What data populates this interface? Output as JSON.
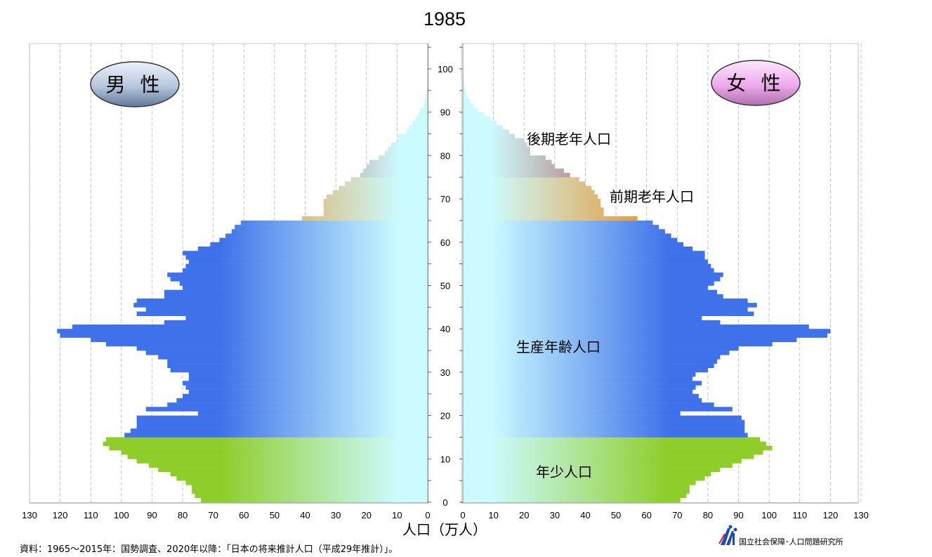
{
  "chart_data": {
    "type": "bar",
    "title": "1985",
    "xlabel": "人口（万人）",
    "x_ticks": [
      130,
      120,
      110,
      100,
      90,
      80,
      70,
      60,
      50,
      40,
      30,
      20,
      10,
      0
    ],
    "age_ticks": [
      0,
      10,
      20,
      30,
      40,
      50,
      60,
      70,
      80,
      90,
      100
    ],
    "xlim": [
      0,
      130
    ],
    "age_range": [
      0,
      105
    ],
    "legend_male": "男 性",
    "legend_female": "女 性",
    "group_labels": {
      "late_elderly": "後期老年人口",
      "early_elderly": "前期老年人口",
      "working_age": "生産年齢人口",
      "young": "年少人口"
    },
    "group_colors": {
      "young": "#8fcd2a",
      "working_age": "#3f72ea",
      "early_elderly": "#e88b1a",
      "late_elderly": "#a52a20",
      "light": "#ccfbff"
    },
    "ages": [
      0,
      1,
      2,
      3,
      4,
      5,
      6,
      7,
      8,
      9,
      10,
      11,
      12,
      13,
      14,
      15,
      16,
      17,
      18,
      19,
      20,
      21,
      22,
      23,
      24,
      25,
      26,
      27,
      28,
      29,
      30,
      31,
      32,
      33,
      34,
      35,
      36,
      37,
      38,
      39,
      40,
      41,
      42,
      43,
      44,
      45,
      46,
      47,
      48,
      49,
      50,
      51,
      52,
      53,
      54,
      55,
      56,
      57,
      58,
      59,
      60,
      61,
      62,
      63,
      64,
      65,
      66,
      67,
      68,
      69,
      70,
      71,
      72,
      73,
      74,
      75,
      76,
      77,
      78,
      79,
      80,
      81,
      82,
      83,
      84,
      85,
      86,
      87,
      88,
      89,
      90,
      91,
      92,
      93,
      94,
      95,
      96,
      97,
      98,
      99,
      100,
      101,
      102,
      103,
      104
    ],
    "series": [
      {
        "name": "男 性",
        "values": [
          74,
          76,
          77,
          77,
          79,
          82,
          84,
          88,
          91,
          95,
          98,
          100,
          104,
          106,
          105,
          99,
          97,
          95,
          95,
          95,
          75,
          92,
          85,
          82,
          80,
          78,
          79,
          80,
          78,
          78,
          84,
          85,
          85,
          88,
          92,
          95,
          105,
          110,
          120,
          121,
          116,
          86,
          79,
          95,
          92,
          96,
          95,
          86,
          86,
          80,
          81,
          84,
          85,
          80,
          79,
          78,
          79,
          80,
          75,
          71,
          68,
          66,
          64,
          63,
          61,
          41,
          34,
          34,
          34,
          34,
          33,
          31,
          29,
          27,
          25,
          22,
          21,
          20,
          19,
          16,
          14,
          13,
          12,
          10,
          10,
          7,
          6,
          5,
          4,
          3,
          2.5,
          1.5,
          1.1,
          0.6,
          0.4,
          0.2,
          0.1,
          0.05,
          0,
          0,
          0,
          0,
          0,
          0,
          0
        ]
      },
      {
        "name": "女 性",
        "values": [
          71,
          73,
          74,
          74,
          76,
          79,
          81,
          84,
          88,
          91,
          95,
          98,
          101,
          99,
          97,
          93,
          92,
          92,
          92,
          91,
          71,
          88,
          82,
          78,
          77,
          75,
          76,
          78,
          75,
          76,
          80,
          82,
          83,
          84,
          87,
          90,
          101,
          109,
          119,
          120,
          113,
          84,
          78,
          95,
          93,
          96,
          93,
          85,
          83,
          80,
          82,
          84,
          85,
          82,
          81,
          80,
          79,
          79,
          75,
          72,
          70,
          68,
          66,
          64,
          62,
          57,
          46,
          46,
          45,
          45,
          44,
          43,
          42,
          40,
          38,
          35,
          33,
          30,
          29,
          27,
          22,
          22,
          21,
          20,
          17,
          15,
          13,
          11,
          9,
          7,
          5,
          3.5,
          2.5,
          1.5,
          1,
          0.7,
          0.5,
          0.3,
          0.2,
          0.1,
          0.05,
          0,
          0,
          0,
          0
        ]
      }
    ]
  },
  "source": "資料：1965～2015年：国勢調査、2020年以降：「日本の将来推計人口（平成29年推計）」。",
  "organization": "国立社会保障･人口問題研究所"
}
